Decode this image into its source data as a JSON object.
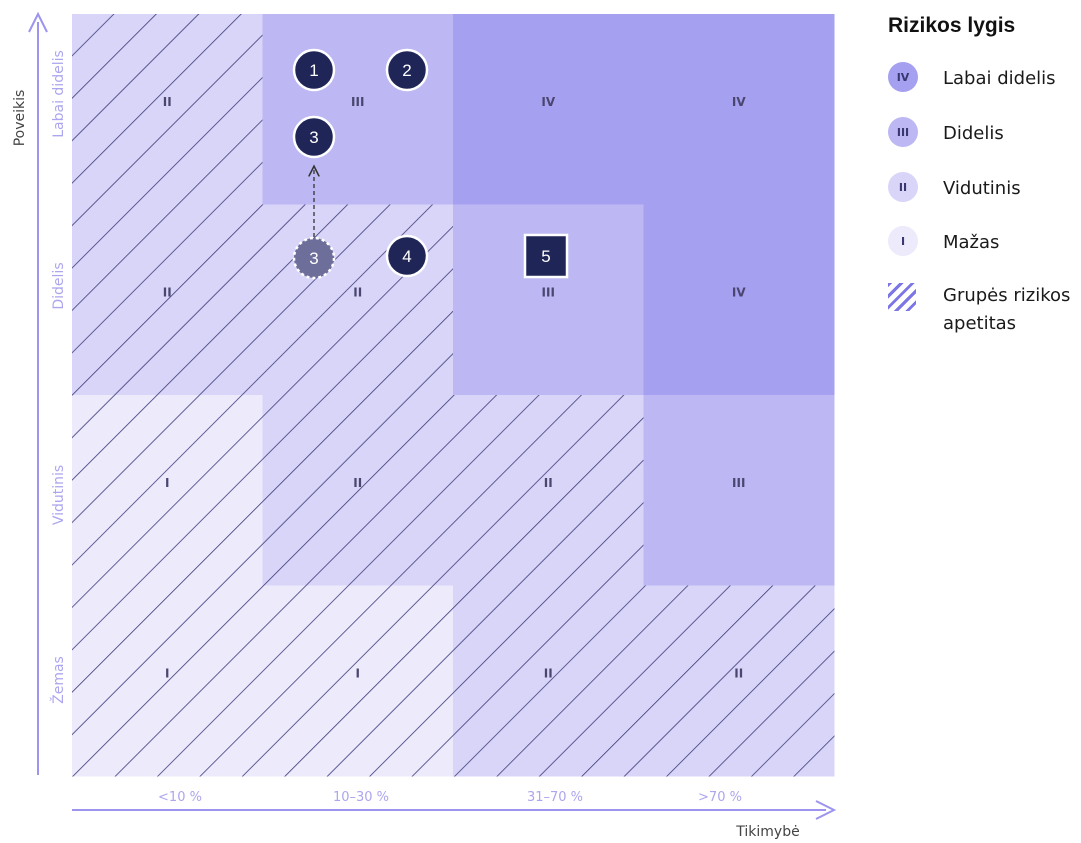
{
  "colors": {
    "level_I": "#eceafb",
    "level_II": "#d8d5f8",
    "level_III": "#bdb8f3",
    "level_IV": "#a6a0f0",
    "axis": "#9c94ef",
    "axis_label": "#aca6ee",
    "hatch": "#3c3a78",
    "marker_fill": "#1f2556",
    "marker_ghost": "#6e6e9a",
    "cell_text": "#4a4670"
  },
  "axes": {
    "y_title": "Poveikis",
    "x_title": "Tikimybė",
    "y_labels": [
      "Labai didelis",
      "Didelis",
      "Vidutinis",
      "Žemas"
    ],
    "x_labels": [
      "<10 %",
      "10–30 %",
      "31–70 %",
      ">70 %"
    ]
  },
  "matrix": {
    "rows": [
      {
        "cells": [
          {
            "level": "II",
            "hatched": true
          },
          {
            "level": "III",
            "hatched": false
          },
          {
            "level": "IV",
            "hatched": false
          },
          {
            "level": "IV",
            "hatched": false
          }
        ]
      },
      {
        "cells": [
          {
            "level": "II",
            "hatched": true
          },
          {
            "level": "II",
            "hatched": true
          },
          {
            "level": "III",
            "hatched": false
          },
          {
            "level": "IV",
            "hatched": false
          }
        ]
      },
      {
        "cells": [
          {
            "level": "I",
            "hatched": true
          },
          {
            "level": "II",
            "hatched": true
          },
          {
            "level": "II",
            "hatched": true
          },
          {
            "level": "III",
            "hatched": false
          }
        ]
      },
      {
        "cells": [
          {
            "level": "I",
            "hatched": true
          },
          {
            "level": "I",
            "hatched": true
          },
          {
            "level": "II",
            "hatched": true
          },
          {
            "level": "II",
            "hatched": true
          }
        ]
      }
    ]
  },
  "markers": [
    {
      "label": "1",
      "shape": "circle"
    },
    {
      "label": "2",
      "shape": "circle"
    },
    {
      "label": "3",
      "shape": "circle"
    },
    {
      "label": "3",
      "shape": "circle-dashed"
    },
    {
      "label": "4",
      "shape": "circle"
    },
    {
      "label": "5",
      "shape": "square"
    }
  ],
  "legend": {
    "title": "Rizikos lygis",
    "items": [
      {
        "symbol": "IV",
        "label": "Labai didelis",
        "color": "#a6a0f0"
      },
      {
        "symbol": "III",
        "label": "Didelis",
        "color": "#bdb8f3"
      },
      {
        "symbol": "II",
        "label": "Vidutinis",
        "color": "#d8d5f8"
      },
      {
        "symbol": "I",
        "label": "Mažas",
        "color": "#eceafb"
      },
      {
        "symbol": "",
        "label": "Grupės rizikos apetitas",
        "hatch": true
      }
    ]
  }
}
